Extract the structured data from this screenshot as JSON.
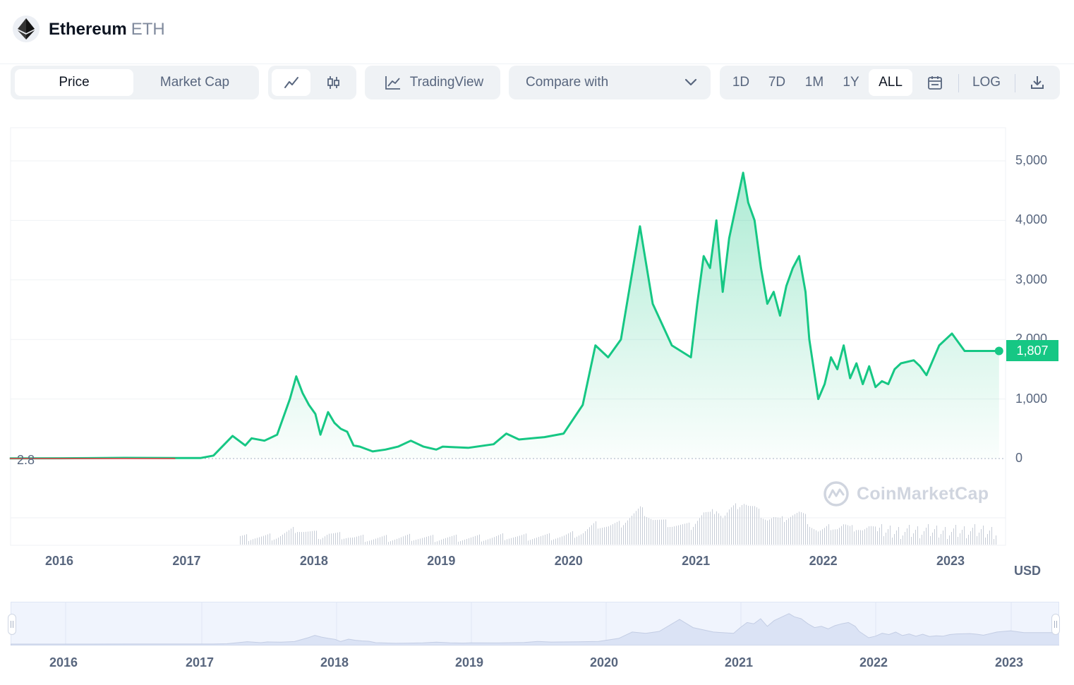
{
  "header": {
    "coin_name": "Ethereum",
    "coin_symbol": "ETH",
    "logo_icon": "ethereum-diamond-icon"
  },
  "toolbar": {
    "metric_tabs": [
      {
        "label": "Price",
        "active": true
      },
      {
        "label": "Market Cap",
        "active": false
      }
    ],
    "chart_type_buttons": [
      {
        "icon": "line-chart-icon",
        "active": true
      },
      {
        "icon": "candlestick-icon",
        "active": false
      }
    ],
    "tradingview_label": "TradingView",
    "compare_placeholder": "Compare with",
    "range_buttons": [
      {
        "label": "1D",
        "active": false
      },
      {
        "label": "7D",
        "active": false
      },
      {
        "label": "1M",
        "active": false
      },
      {
        "label": "1Y",
        "active": false
      },
      {
        "label": "ALL",
        "active": true
      }
    ],
    "calendar_icon": "calendar-icon",
    "log_label": "LOG",
    "download_icon": "download-icon"
  },
  "chart": {
    "current_price_label": "1,807",
    "start_price_label": "2.8",
    "currency_label": "USD",
    "watermark_text": "CoinMarketCap",
    "line_color": "#16c784"
  },
  "chart_data": {
    "type": "area",
    "ylim": [
      0,
      5000
    ],
    "y_ticks": [
      "0",
      "1,000",
      "2,000",
      "3,000",
      "4,000",
      "5,000"
    ],
    "x_ticks": [
      "2016",
      "2017",
      "2018",
      "2019",
      "2020",
      "2021",
      "2022",
      "2023"
    ],
    "series": [
      {
        "x": [
          2015.6,
          2016.0,
          2016.5,
          2016.9,
          2017.1,
          2017.2,
          2017.35,
          2017.45,
          2017.5,
          2017.6,
          2017.7,
          2017.8,
          2017.85,
          2017.9,
          2017.95,
          2018.0,
          2018.04,
          2018.1,
          2018.15,
          2018.2,
          2018.25,
          2018.3,
          2018.35,
          2018.4,
          2018.45,
          2018.55,
          2018.65,
          2018.75,
          2018.85,
          2018.95,
          2019.0,
          2019.2,
          2019.4,
          2019.5,
          2019.6,
          2019.8,
          2019.95,
          2020.1,
          2020.2,
          2020.3,
          2020.4,
          2020.55,
          2020.65,
          2020.8,
          2020.95,
          2021.0,
          2021.05,
          2021.1,
          2021.15,
          2021.2,
          2021.25,
          2021.3,
          2021.36,
          2021.4,
          2021.45,
          2021.5,
          2021.55,
          2021.6,
          2021.65,
          2021.7,
          2021.75,
          2021.8,
          2021.85,
          2021.88,
          2021.95,
          2022.0,
          2022.05,
          2022.1,
          2022.15,
          2022.2,
          2022.25,
          2022.3,
          2022.35,
          2022.4,
          2022.45,
          2022.5,
          2022.55,
          2022.6,
          2022.7,
          2022.75,
          2022.8,
          2022.9,
          2023.0,
          2023.1,
          2023.2,
          2023.25,
          2023.3,
          2023.37
        ],
        "values": [
          2.8,
          5,
          12,
          8,
          10,
          50,
          380,
          220,
          340,
          300,
          400,
          1000,
          1380,
          1100,
          900,
          750,
          400,
          780,
          600,
          500,
          450,
          220,
          200,
          160,
          120,
          150,
          200,
          300,
          200,
          150,
          200,
          180,
          240,
          420,
          320,
          360,
          420,
          900,
          1900,
          1700,
          2000,
          3900,
          2600,
          1900,
          1700,
          2600,
          3400,
          3200,
          4000,
          2800,
          3700,
          4200,
          4800,
          4300,
          4000,
          3200,
          2600,
          2800,
          2400,
          2900,
          3200,
          3400,
          2800,
          2000,
          1000,
          1250,
          1700,
          1500,
          1900,
          1350,
          1600,
          1250,
          1550,
          1200,
          1300,
          1250,
          1500,
          1600,
          1650,
          1550,
          1400,
          1900,
          2100,
          1807,
          1807,
          1807,
          1807,
          1807
        ]
      }
    ],
    "last_value": 1807,
    "start_value": 2.8
  },
  "navigator": {
    "labels": [
      "2016",
      "2017",
      "2018",
      "2019",
      "2020",
      "2021",
      "2022",
      "2023"
    ]
  }
}
